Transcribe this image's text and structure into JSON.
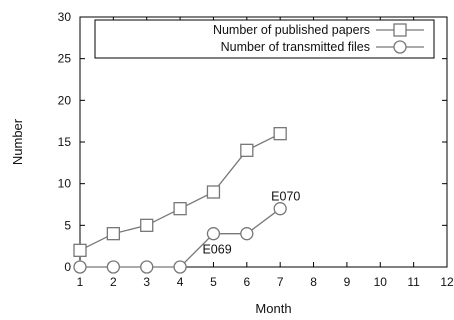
{
  "chart_data": {
    "type": "line",
    "title": "",
    "xlabel": "Month",
    "ylabel": "Number",
    "xlim": [
      1,
      12
    ],
    "ylim": [
      0,
      30
    ],
    "x_ticks": [
      1,
      2,
      3,
      4,
      5,
      6,
      7,
      8,
      9,
      10,
      11,
      12
    ],
    "y_ticks": [
      0,
      5,
      10,
      15,
      20,
      25,
      30
    ],
    "grid": false,
    "legend_position": "top-right",
    "series": [
      {
        "name": "Number of published papers",
        "marker": "square",
        "x": [
          1,
          2,
          3,
          4,
          5,
          6,
          7
        ],
        "y": [
          2,
          4,
          5,
          7,
          9,
          14,
          16
        ]
      },
      {
        "name": "Number of transmitted files",
        "marker": "circle",
        "x": [
          1,
          2,
          3,
          4,
          5,
          6,
          7
        ],
        "y": [
          0,
          0,
          0,
          0,
          4,
          4,
          7
        ]
      }
    ],
    "annotations": [
      {
        "text": "E069",
        "x": 5,
        "y": 4
      },
      {
        "text": "E070",
        "x": 7,
        "y": 7
      }
    ],
    "colors": {
      "line": "#777777",
      "axis": "#000000"
    }
  }
}
